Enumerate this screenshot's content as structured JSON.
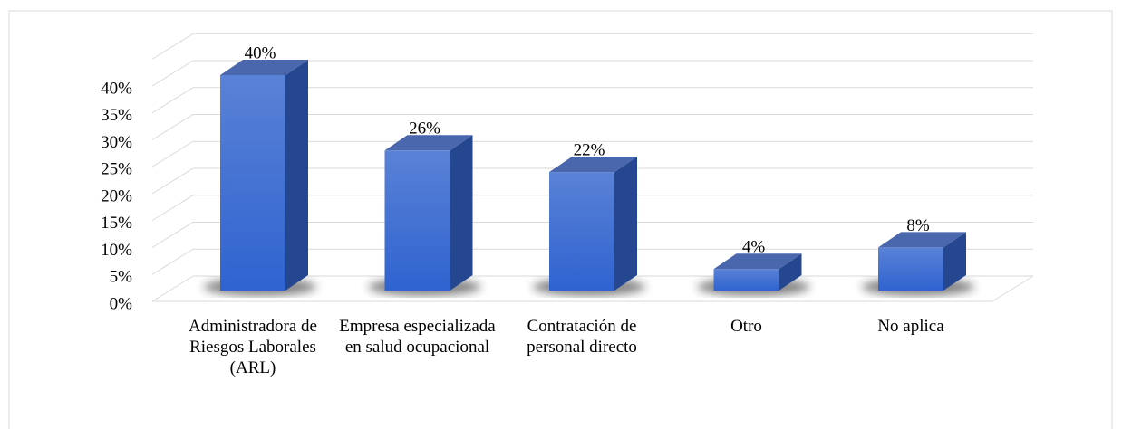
{
  "chart_data": {
    "type": "bar3d",
    "categories": [
      "Administradora de Riesgos Laborales (ARL)",
      "Empresa especializada en salud ocupacional",
      "Contratación de personal directo",
      "Otro",
      "No aplica"
    ],
    "values": [
      40,
      26,
      22,
      4,
      8
    ],
    "value_labels": [
      "40%",
      "26%",
      "22%",
      "4%",
      "8%"
    ],
    "color": "#3b6fd8",
    "ylim": [
      0,
      45
    ],
    "yticks": [
      {
        "value": 0,
        "label": "0%"
      },
      {
        "value": 5,
        "label": "5%"
      },
      {
        "value": 10,
        "label": "10%"
      },
      {
        "value": 15,
        "label": "15%"
      },
      {
        "value": 20,
        "label": "20%"
      },
      {
        "value": 25,
        "label": "25%"
      },
      {
        "value": 30,
        "label": "30%"
      },
      {
        "value": 35,
        "label": "35%"
      },
      {
        "value": 40,
        "label": "40%"
      }
    ],
    "grid": true
  }
}
